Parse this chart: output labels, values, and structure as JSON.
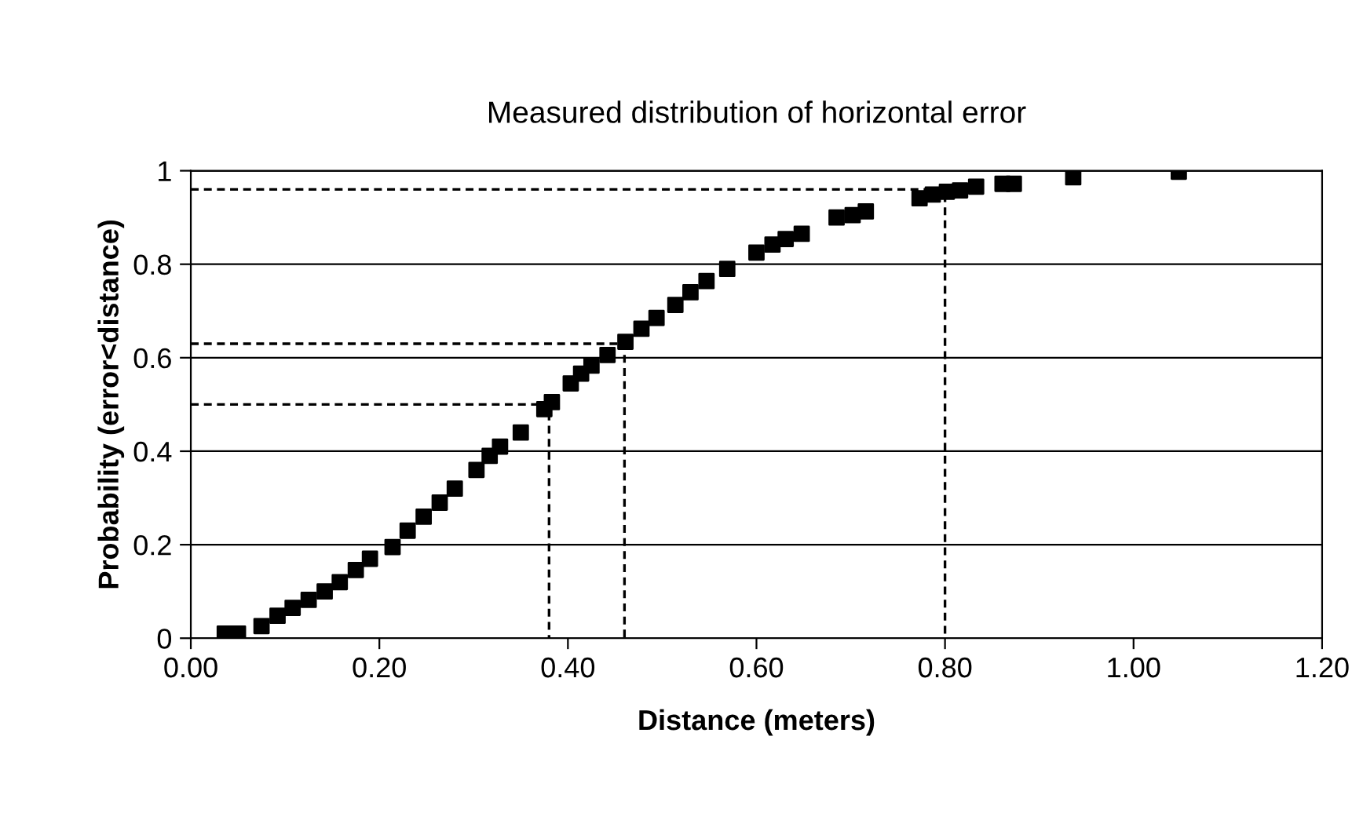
{
  "chart_data": {
    "type": "scatter",
    "title": "Measured distribution of horizontal error",
    "xlabel": "Distance (meters)",
    "ylabel": "Probability (error<distance)",
    "xlim": [
      0,
      1.2
    ],
    "xticks": [
      {
        "value": 0,
        "label": "0.00"
      },
      {
        "value": 0.2,
        "label": "0.20"
      },
      {
        "value": 0.4,
        "label": "0.40"
      },
      {
        "value": 0.6,
        "label": "0.60"
      },
      {
        "value": 0.8,
        "label": "0.80"
      },
      {
        "value": 1.0,
        "label": "1.00"
      },
      {
        "value": 1.2,
        "label": "1.20"
      }
    ],
    "ylim": [
      0,
      1
    ],
    "yticks": [
      0,
      0.2,
      0.4,
      0.6,
      0.8,
      1
    ],
    "grid": "y",
    "legend": false,
    "series": [
      {
        "color": "#000000",
        "marker": "square",
        "x": [
          0.036,
          0.05,
          0.075,
          0.092,
          0.108,
          0.125,
          0.142,
          0.158,
          0.175,
          0.19,
          0.214,
          0.23,
          0.247,
          0.264,
          0.28,
          0.303,
          0.317,
          0.328,
          0.35,
          0.375,
          0.383,
          0.403,
          0.414,
          0.425,
          0.442,
          0.461,
          0.478,
          0.494,
          0.514,
          0.53,
          0.547,
          0.569,
          0.6,
          0.617,
          0.631,
          0.648,
          0.685,
          0.702,
          0.716,
          0.773,
          0.787,
          0.802,
          0.816,
          0.833,
          0.861,
          0.873,
          0.936,
          1.048
        ],
        "values": [
          0.01,
          0.01,
          0.026,
          0.048,
          0.065,
          0.082,
          0.1,
          0.12,
          0.146,
          0.17,
          0.195,
          0.23,
          0.26,
          0.29,
          0.32,
          0.36,
          0.39,
          0.41,
          0.44,
          0.49,
          0.505,
          0.545,
          0.566,
          0.583,
          0.606,
          0.634,
          0.662,
          0.685,
          0.713,
          0.74,
          0.764,
          0.79,
          0.825,
          0.842,
          0.854,
          0.865,
          0.9,
          0.905,
          0.913,
          0.941,
          0.949,
          0.955,
          0.958,
          0.966,
          0.972,
          0.972,
          0.986,
          0.998
        ]
      },
      {
        "type": "line",
        "color": "#000000",
        "line_style": "dashed",
        "marker": "none",
        "x": [
          0,
          0.38,
          0.38
        ],
        "values": [
          0.5,
          0.5,
          0
        ]
      },
      {
        "type": "line",
        "color": "#000000",
        "line_style": "dashed",
        "marker": "none",
        "x": [
          0,
          0.46,
          0.46
        ],
        "values": [
          0.63,
          0.63,
          0
        ]
      },
      {
        "type": "line",
        "color": "#000000",
        "line_style": "dashed",
        "marker": "none",
        "x": [
          0,
          0.8,
          0.8
        ],
        "values": [
          0.96,
          0.96,
          0
        ]
      }
    ]
  }
}
